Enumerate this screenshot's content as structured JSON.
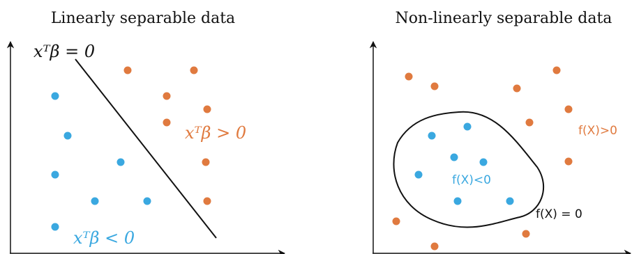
{
  "colors": {
    "blue": "#3aa8e0",
    "orange": "#e07a3f",
    "ink": "#111111"
  },
  "left_panel": {
    "title": "Linearly separable data",
    "boundary_label": "xᵀβ = 0",
    "positive_label": "xᵀβ > 0",
    "negative_label": "xᵀβ < 0"
  },
  "right_panel": {
    "title": "Non-linearly separable data",
    "boundary_label": "f(X) = 0",
    "positive_label": "f(X)>0",
    "negative_label": "f(X)<0"
  }
}
